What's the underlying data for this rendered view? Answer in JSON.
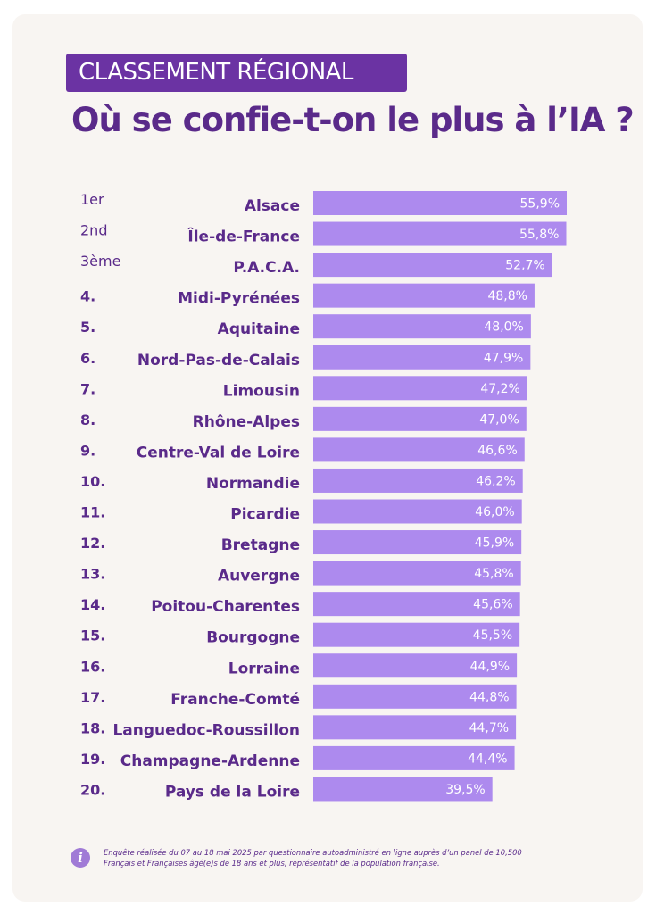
{
  "badge": "CLASSEMENT RÉGIONAL",
  "title": "Où se confie-t-on le plus à l’IA ?",
  "colors": {
    "bar": "#ad8aee",
    "text": "#5a2a8a",
    "badge": "#6b33a3"
  },
  "chart_data": {
    "type": "bar",
    "orientation": "horizontal",
    "unit": "%",
    "categories": [
      "Alsace",
      "Île-de-France",
      "P.A.C.A.",
      "Midi-Pyrénées",
      "Aquitaine",
      "Nord-Pas-de-Calais",
      "Limousin",
      "Rhône-Alpes",
      "Centre-Val de Loire",
      "Normandie",
      "Picardie",
      "Bretagne",
      "Auvergne",
      "Poitou-Charentes",
      "Bourgogne",
      "Lorraine",
      "Franche-Comté",
      "Languedoc-Roussillon",
      "Champagne-Ardenne",
      "Pays de la Loire"
    ],
    "ranks": [
      "1er",
      "2nd",
      "3ème",
      "4.",
      "5.",
      "6.",
      "7.",
      "8.",
      "9.",
      "10.",
      "11.",
      "12.",
      "13.",
      "14.",
      "15.",
      "16.",
      "17.",
      "18.",
      "19.",
      "20."
    ],
    "values": [
      55.9,
      55.8,
      52.7,
      48.8,
      48.0,
      47.9,
      47.2,
      47.0,
      46.6,
      46.2,
      46.0,
      45.9,
      45.8,
      45.6,
      45.5,
      44.9,
      44.8,
      44.7,
      44.4,
      39.5
    ],
    "value_labels": [
      "55,9%",
      "55,8%",
      "52,7%",
      "48,8%",
      "48,0%",
      "47,9%",
      "47,2%",
      "47,0%",
      "46,6%",
      "46,2%",
      "46,0%",
      "45,9%",
      "45,8%",
      "45,6%",
      "45,5%",
      "44,9%",
      "44,8%",
      "44,7%",
      "44,4%",
      "39,5%"
    ],
    "xlim": [
      0,
      55.9
    ],
    "grid": false,
    "legend": "none"
  },
  "footnote": "Enquête réalisée du 07 au 18 mai 2025 par questionnaire autoadministré en ligne auprès d’un panel de 10,500 Français et Françaises âgé(e)s de 18 ans et plus, représentatif de la population française.",
  "info_icon": "info-icon"
}
